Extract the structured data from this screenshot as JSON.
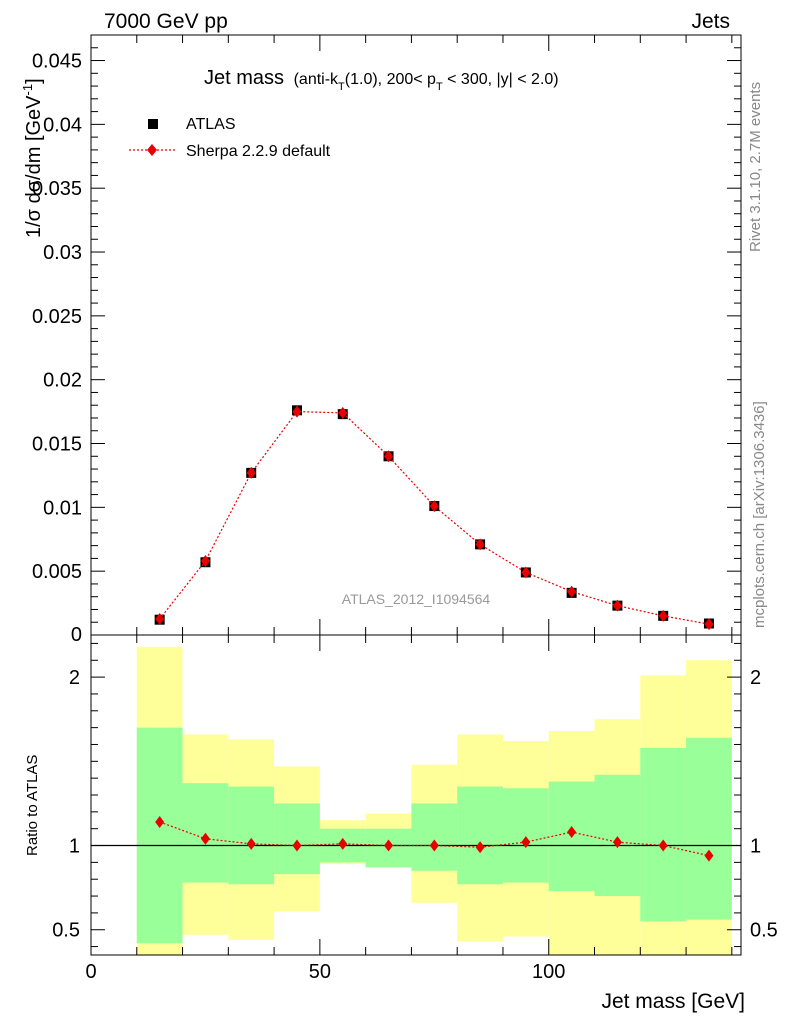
{
  "header": {
    "left": "7000 GeV pp",
    "right": "Jets"
  },
  "side_labels": {
    "rivet": "Rivet 3.1.10,  2.7M events",
    "mcplots": "mcplots.cern.ch [arXiv:1306.3436]"
  },
  "chart_data": [
    {
      "type": "scatter",
      "title_main": "Jet mass",
      "title_sub": "(anti-k",
      "title_sub_idx": "T",
      "title_sub2": "(1.0), 200< p",
      "title_sub2_idx": "T",
      "title_sub3": " < 300, |y| < 2.0)",
      "ylabel": "1/σ dσ/dm [GeV",
      "ylabel_sup": "-1",
      "ylabel_end": "]",
      "watermark": "ATLAS_2012_I1094564",
      "xlim": [
        0,
        142
      ],
      "ylim": [
        0,
        0.047
      ],
      "yticks": [
        0.005,
        0.01,
        0.015,
        0.02,
        0.025,
        0.03,
        0.035,
        0.04,
        0.045
      ],
      "ytick_labels": [
        "0.005",
        "0.01",
        "0.015",
        "0.02",
        "0.025",
        "0.03",
        "0.035",
        "0.04",
        "0.045"
      ],
      "ytick_zero_label": "0",
      "legend_position": "top-left",
      "series": [
        {
          "name": "ATLAS",
          "marker": "square",
          "color": "#000000",
          "x": [
            15,
            25,
            35,
            45,
            55,
            65,
            75,
            85,
            95,
            105,
            115,
            125,
            135
          ],
          "y": [
            0.0012,
            0.0057,
            0.0127,
            0.0176,
            0.0173,
            0.014,
            0.0101,
            0.0071,
            0.0049,
            0.0033,
            0.0023,
            0.0015,
            0.0009
          ]
        },
        {
          "name": "Sherpa 2.2.9 default",
          "marker": "diamond",
          "color": "#e60000",
          "line": "dotted",
          "x": [
            15,
            25,
            35,
            45,
            55,
            65,
            75,
            85,
            95,
            105,
            115,
            125,
            135
          ],
          "y": [
            0.00125,
            0.0058,
            0.0127,
            0.0175,
            0.0174,
            0.014,
            0.0101,
            0.0071,
            0.0049,
            0.0034,
            0.0023,
            0.0015,
            0.00085
          ]
        }
      ]
    },
    {
      "type": "scatter",
      "ylabel": "Ratio to ATLAS",
      "xlabel": "Jet mass [GeV]",
      "xlim": [
        0,
        142
      ],
      "ylim": [
        0.35,
        2.25
      ],
      "xticks": [
        0,
        50,
        100
      ],
      "xtick_labels": [
        "0",
        "50",
        "100"
      ],
      "yticks": [
        0.5,
        1,
        2
      ],
      "ytick_labels": [
        "0.5",
        "1",
        "2"
      ],
      "band_edges": [
        10,
        20,
        30,
        40,
        50,
        60,
        70,
        80,
        90,
        100,
        110,
        120,
        130,
        140
      ],
      "band_inner": {
        "color": "#99ff99",
        "low": [
          0.42,
          0.78,
          0.77,
          0.83,
          0.9,
          0.87,
          0.85,
          0.77,
          0.78,
          0.73,
          0.7,
          0.55,
          0.56
        ],
        "high": [
          1.7,
          1.37,
          1.35,
          1.25,
          1.1,
          1.1,
          1.25,
          1.35,
          1.34,
          1.38,
          1.42,
          1.58,
          1.64
        ]
      },
      "band_outer": {
        "color": "#ffff99",
        "low": [
          0.35,
          0.47,
          0.44,
          0.61,
          0.89,
          0.87,
          0.66,
          0.43,
          0.46,
          0.35,
          0.35,
          0.35,
          0.35
        ],
        "high": [
          2.18,
          1.66,
          1.63,
          1.47,
          1.15,
          1.19,
          1.48,
          1.66,
          1.62,
          1.68,
          1.75,
          2.01,
          2.1
        ]
      },
      "series": [
        {
          "name": "Sherpa 2.2.9 default",
          "color": "#e60000",
          "x": [
            15,
            25,
            35,
            45,
            55,
            65,
            75,
            85,
            95,
            105,
            115,
            125,
            135
          ],
          "y": [
            1.14,
            1.04,
            1.01,
            1.0,
            1.01,
            1.0,
            1.0,
            0.99,
            1.02,
            1.08,
            1.02,
            1.0,
            0.94
          ]
        }
      ]
    }
  ]
}
